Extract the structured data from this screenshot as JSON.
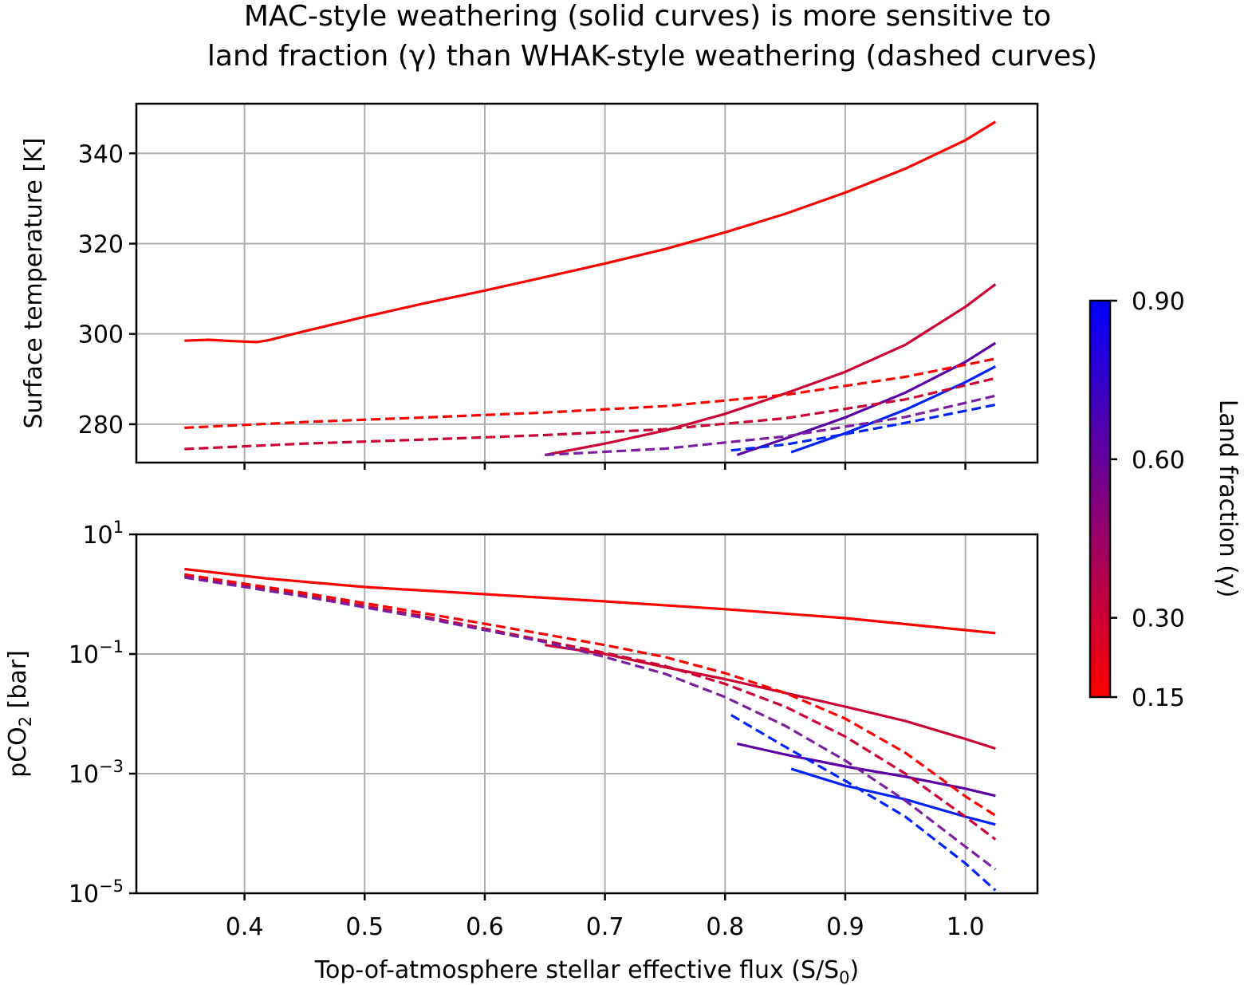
{
  "title_lines": [
    "MAC-style weathering (solid curves) is more sensitive to",
    "land fraction (γ) than WHAK-style weathering (dashed curves)"
  ],
  "xlabel": "Top-of-atmosphere stellar effective flux (S/S",
  "xlabel_sub": "0",
  "xlabel_end": ")",
  "x_ticks": [
    "0.4",
    "0.5",
    "0.6",
    "0.7",
    "0.8",
    "0.9",
    "1.0"
  ],
  "colorbar": {
    "label": "Land fraction (γ)",
    "ticks": [
      "0.15",
      "0.30",
      "0.60",
      "0.90"
    ],
    "range": [
      0.15,
      0.9
    ],
    "color_low": "#ff0000",
    "color_high": "#0000ff"
  },
  "chart_data": [
    {
      "type": "line",
      "panel": "top",
      "ylabel": "Surface temperature [K]",
      "xlim": [
        0.31,
        1.06
      ],
      "ylim": [
        271.5,
        351
      ],
      "y_scale": "linear",
      "y_ticks": [
        "280",
        "300",
        "320",
        "340"
      ],
      "y_tick_values": [
        280,
        300,
        320,
        340
      ],
      "grid": true,
      "series": [
        {
          "style": "solid",
          "land_fraction": 0.15,
          "color": "#ff0000",
          "x": [
            0.35,
            0.37,
            0.39,
            0.41,
            0.42,
            0.45,
            0.5,
            0.55,
            0.6,
            0.65,
            0.7,
            0.75,
            0.8,
            0.85,
            0.9,
            0.95,
            1.0,
            1.025
          ],
          "y": [
            298.5,
            298.7,
            298.4,
            298.2,
            298.6,
            300.6,
            303.8,
            306.8,
            309.6,
            312.6,
            315.6,
            318.8,
            322.5,
            326.6,
            331.3,
            336.6,
            342.9,
            347.0
          ]
        },
        {
          "style": "solid",
          "land_fraction": 0.3,
          "color": "#cc0033",
          "x": [
            0.65,
            0.7,
            0.75,
            0.8,
            0.85,
            0.9,
            0.95,
            1.0,
            1.025
          ],
          "y": [
            273.2,
            275.7,
            278.6,
            282.3,
            286.8,
            291.6,
            297.6,
            306.0,
            311.0
          ]
        },
        {
          "style": "solid",
          "land_fraction": 0.6,
          "color": "#5a00a6",
          "x": [
            0.81,
            0.85,
            0.9,
            0.95,
            1.0,
            1.025
          ],
          "y": [
            273.2,
            276.8,
            281.5,
            287.0,
            293.8,
            298.0
          ]
        },
        {
          "style": "solid",
          "land_fraction": 0.9,
          "color": "#0022ff",
          "x": [
            0.855,
            0.9,
            0.95,
            1.0,
            1.025
          ],
          "y": [
            273.8,
            278.0,
            283.2,
            289.3,
            292.8
          ]
        },
        {
          "style": "dashed",
          "land_fraction": 0.15,
          "color": "#ff0000",
          "x": [
            0.35,
            0.45,
            0.55,
            0.65,
            0.75,
            0.85,
            0.95,
            1.025
          ],
          "y": [
            279.2,
            280.5,
            281.5,
            282.6,
            284.0,
            286.5,
            290.5,
            294.5
          ]
        },
        {
          "style": "dashed",
          "land_fraction": 0.3,
          "color": "#cc0033",
          "x": [
            0.35,
            0.45,
            0.55,
            0.65,
            0.75,
            0.85,
            0.95,
            1.025
          ],
          "y": [
            274.5,
            275.7,
            276.6,
            277.6,
            278.9,
            281.3,
            285.5,
            290.2
          ]
        },
        {
          "style": "dashed",
          "land_fraction": 0.6,
          "color": "#7a1fa0",
          "x": [
            0.65,
            0.75,
            0.85,
            0.95,
            1.025
          ],
          "y": [
            273.2,
            274.6,
            277.3,
            281.6,
            286.3
          ]
        },
        {
          "style": "dashed",
          "land_fraction": 0.9,
          "color": "#0022ff",
          "x": [
            0.805,
            0.85,
            0.9,
            0.95,
            1.025
          ],
          "y": [
            274.2,
            275.5,
            277.8,
            280.3,
            284.3
          ]
        }
      ]
    },
    {
      "type": "line",
      "panel": "bottom",
      "ylabel": "pCO",
      "ylabel_sub": "2",
      "ylabel_end": " [bar]",
      "xlim": [
        0.31,
        1.06
      ],
      "ylim_log10": [
        -5,
        1
      ],
      "y_scale": "log",
      "y_tick_base": "10",
      "y_tick_exponents": [
        "1",
        "−1",
        "−3",
        "−5"
      ],
      "y_tick_values_log10": [
        1,
        -1,
        -3,
        -5
      ],
      "grid": true,
      "series": [
        {
          "style": "solid",
          "land_fraction": 0.15,
          "color": "#ff0000",
          "x": [
            0.35,
            0.42,
            0.5,
            0.6,
            0.7,
            0.8,
            0.9,
            1.0,
            1.025
          ],
          "log10_y": [
            0.42,
            0.26,
            0.12,
            0.0,
            -0.12,
            -0.25,
            -0.4,
            -0.6,
            -0.65
          ]
        },
        {
          "style": "solid",
          "land_fraction": 0.3,
          "color": "#cc0033",
          "x": [
            0.65,
            0.7,
            0.75,
            0.8,
            0.85,
            0.9,
            0.95,
            1.0,
            1.025
          ],
          "log10_y": [
            -0.85,
            -1.0,
            -1.22,
            -1.42,
            -1.65,
            -1.88,
            -2.12,
            -2.42,
            -2.58
          ]
        },
        {
          "style": "solid",
          "land_fraction": 0.6,
          "color": "#5a00a6",
          "x": [
            0.81,
            0.85,
            0.9,
            0.95,
            1.0,
            1.025
          ],
          "log10_y": [
            -2.5,
            -2.68,
            -2.88,
            -3.05,
            -3.25,
            -3.37
          ]
        },
        {
          "style": "solid",
          "land_fraction": 0.9,
          "color": "#0022ff",
          "x": [
            0.855,
            0.9,
            0.95,
            1.0,
            1.025
          ],
          "log10_y": [
            -2.92,
            -3.2,
            -3.43,
            -3.72,
            -3.85
          ]
        },
        {
          "style": "dashed",
          "land_fraction": 0.15,
          "color": "#ff0000",
          "x": [
            0.35,
            0.45,
            0.55,
            0.65,
            0.7,
            0.75,
            0.8,
            0.85,
            0.9,
            0.95,
            1.0,
            1.025
          ],
          "log10_y": [
            0.33,
            0.02,
            -0.32,
            -0.67,
            -0.85,
            -1.05,
            -1.32,
            -1.65,
            -2.08,
            -2.65,
            -3.38,
            -3.7
          ]
        },
        {
          "style": "dashed",
          "land_fraction": 0.3,
          "color": "#cc0033",
          "x": [
            0.35,
            0.45,
            0.55,
            0.65,
            0.7,
            0.75,
            0.8,
            0.85,
            0.9,
            0.95,
            1.0,
            1.025
          ],
          "log10_y": [
            0.3,
            -0.02,
            -0.37,
            -0.78,
            -0.98,
            -1.2,
            -1.5,
            -1.88,
            -2.38,
            -3.0,
            -3.72,
            -4.1
          ]
        },
        {
          "style": "dashed",
          "land_fraction": 0.6,
          "color": "#7a1fa0",
          "x": [
            0.35,
            0.45,
            0.55,
            0.65,
            0.7,
            0.75,
            0.8,
            0.85,
            0.9,
            0.95,
            1.0,
            1.025
          ],
          "log10_y": [
            0.28,
            -0.04,
            -0.4,
            -0.8,
            -1.05,
            -1.33,
            -1.72,
            -2.2,
            -2.78,
            -3.45,
            -4.22,
            -4.6
          ]
        },
        {
          "style": "dashed",
          "land_fraction": 0.9,
          "color": "#0022ff",
          "x": [
            0.805,
            0.85,
            0.9,
            0.95,
            1.0,
            1.025
          ],
          "log10_y": [
            -2.02,
            -2.55,
            -3.12,
            -3.72,
            -4.5,
            -4.95
          ]
        }
      ]
    }
  ]
}
